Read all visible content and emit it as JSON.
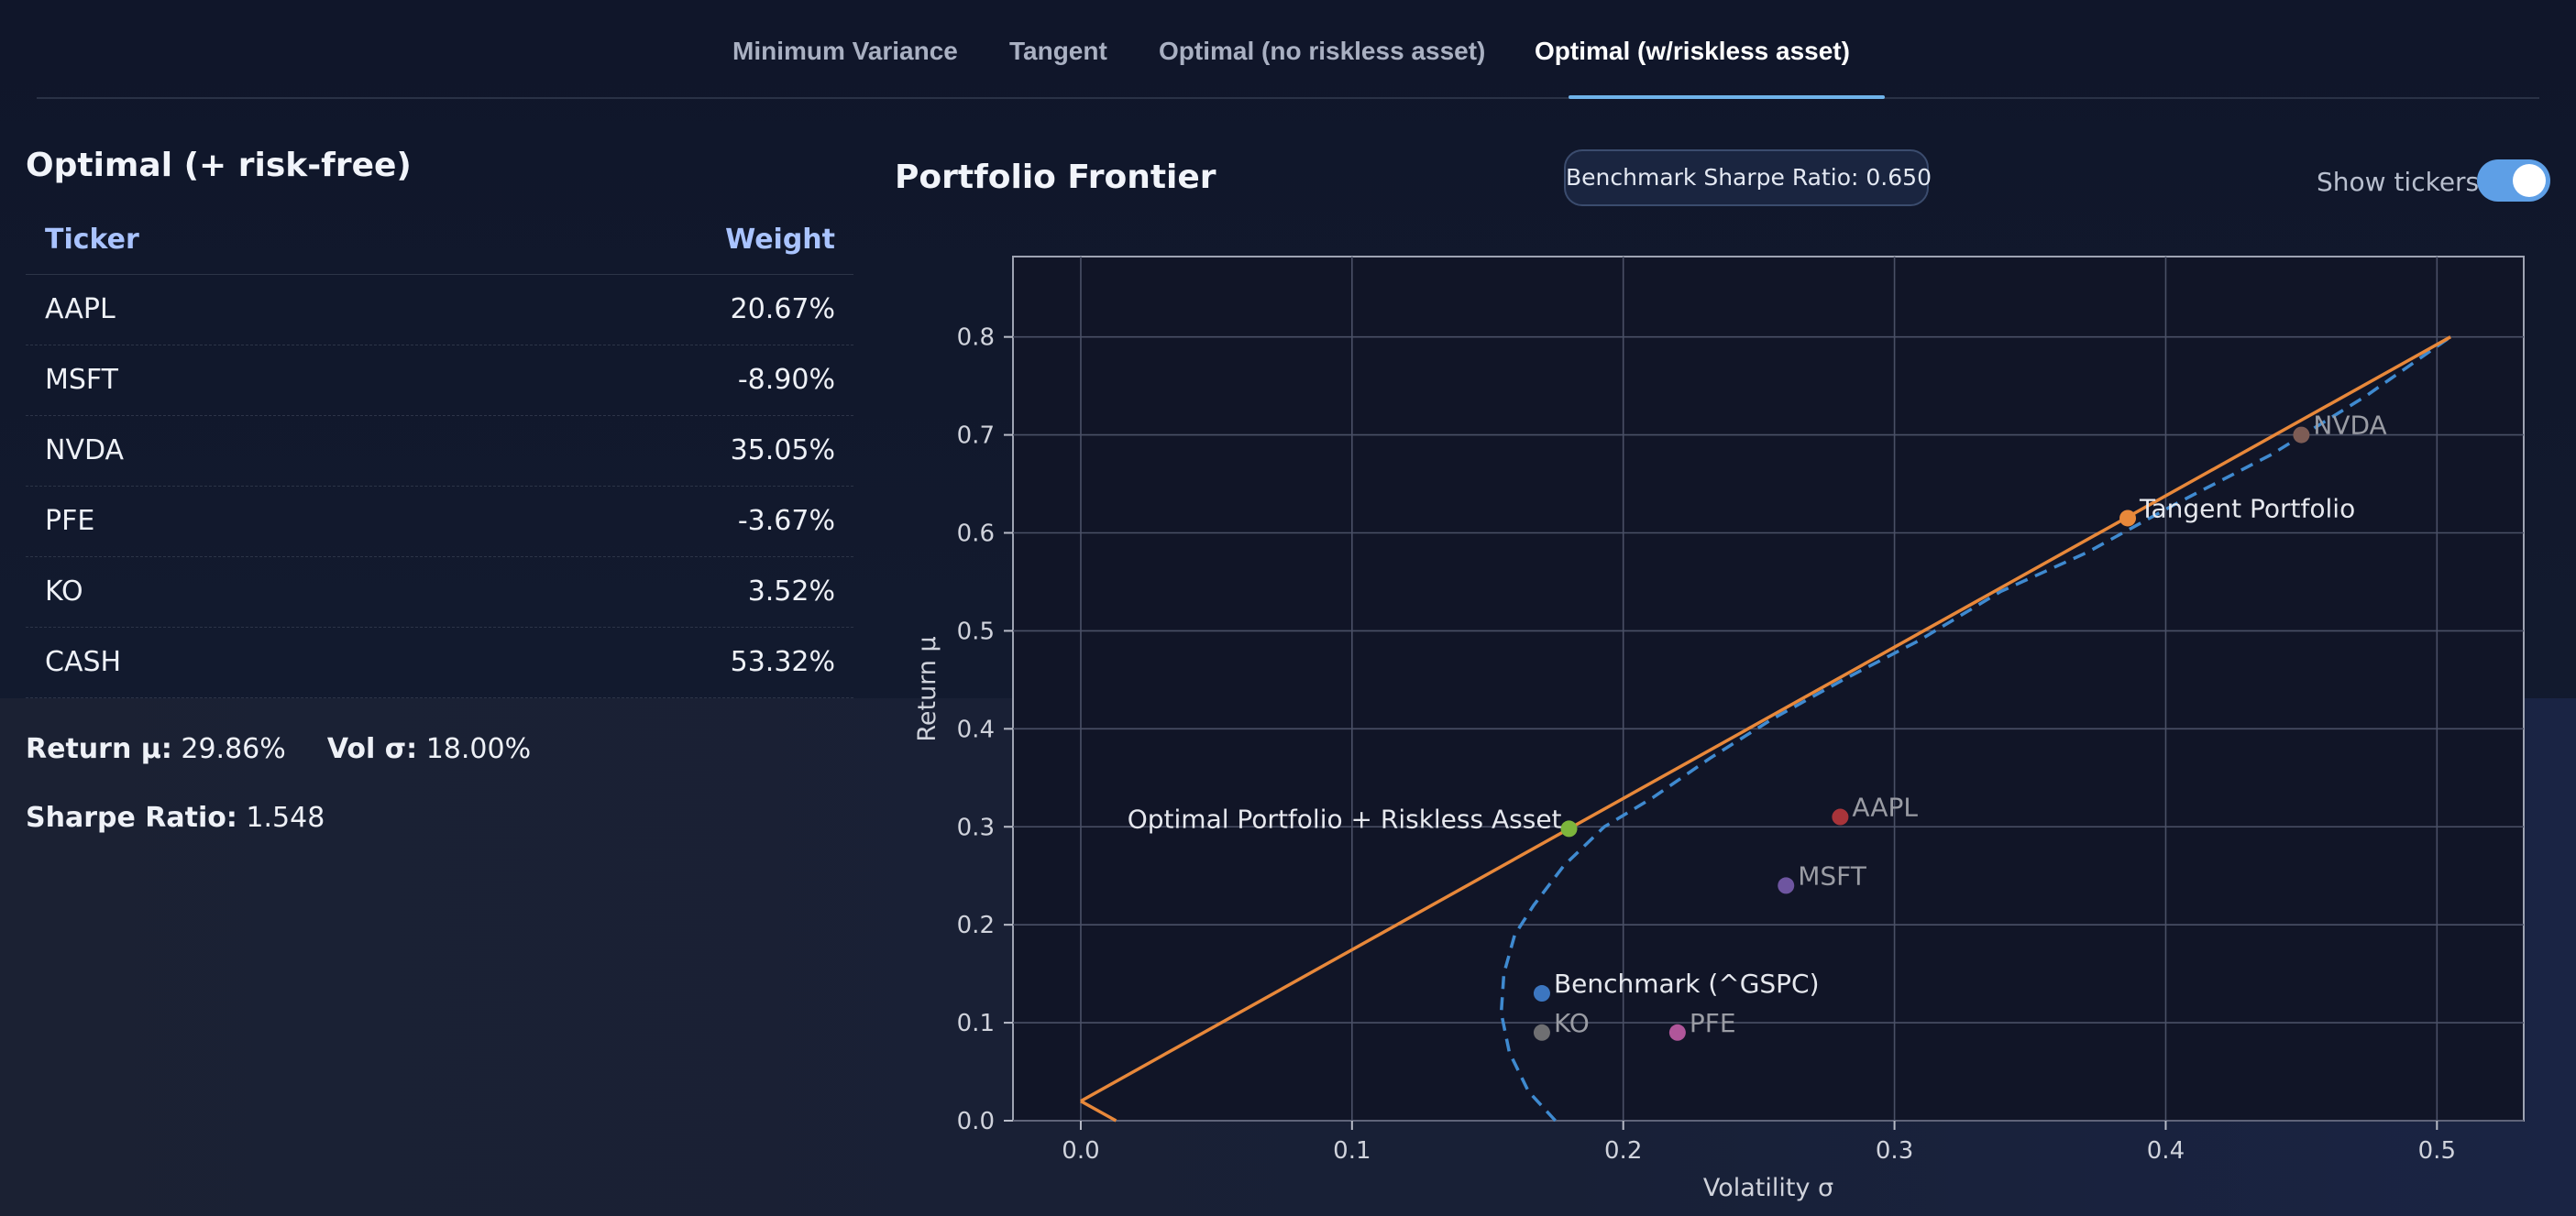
{
  "tabs": [
    {
      "label": "Minimum Variance"
    },
    {
      "label": "Tangent"
    },
    {
      "label": "Optimal (no riskless asset)"
    },
    {
      "label": "Optimal (w/riskless asset)"
    }
  ],
  "active_tab": 3,
  "left_panel": {
    "title": "Optimal (+ risk-free)",
    "headers": {
      "ticker": "Ticker",
      "weight": "Weight"
    },
    "rows": [
      {
        "ticker": "AAPL",
        "weight": "20.67%"
      },
      {
        "ticker": "MSFT",
        "weight": "-8.90%"
      },
      {
        "ticker": "NVDA",
        "weight": "35.05%"
      },
      {
        "ticker": "PFE",
        "weight": "-3.67%"
      },
      {
        "ticker": "KO",
        "weight": "3.52%"
      },
      {
        "ticker": "CASH",
        "weight": "53.32%"
      }
    ],
    "return_label": "Return μ:",
    "return_value": "29.86%",
    "vol_label": "Vol σ:",
    "vol_value": "18.00%",
    "sharpe_label": "Sharpe Ratio:",
    "sharpe_value": "1.548"
  },
  "chart_header": {
    "title": "Portfolio Frontier",
    "badge": "Benchmark Sharpe Ratio: 0.650",
    "toggle_label": "Show tickers",
    "toggle_on": true
  },
  "colors": {
    "cml": "#e8883a",
    "frontier": "#3f8ad0",
    "grid": "#4a5066",
    "axis": "#a8acb8"
  },
  "chart_data": {
    "type": "scatter",
    "xlabel": "Volatility σ",
    "ylabel": "Return μ",
    "xlim": [
      -0.025,
      0.532
    ],
    "ylim": [
      0.0,
      0.882
    ],
    "xticks": [
      "0.0",
      "0.1",
      "0.2",
      "0.3",
      "0.4",
      "0.5"
    ],
    "yticks": [
      "0.0",
      "0.1",
      "0.2",
      "0.3",
      "0.4",
      "0.5",
      "0.6",
      "0.7",
      "0.8"
    ],
    "grid": true,
    "cml": {
      "x": [
        0.0,
        0.505
      ],
      "y": [
        0.02,
        0.8
      ],
      "color": "#e8883a"
    },
    "cml_lower": {
      "x": [
        0.0,
        0.013
      ],
      "y": [
        0.02,
        0.0
      ]
    },
    "frontier": {
      "x": [
        0.175,
        0.165,
        0.158,
        0.155,
        0.156,
        0.16,
        0.167,
        0.178,
        0.193,
        0.211,
        0.232,
        0.255,
        0.281,
        0.309,
        0.339,
        0.371,
        0.404,
        0.439,
        0.474,
        0.505
      ],
      "y": [
        0.0,
        0.03,
        0.07,
        0.11,
        0.15,
        0.19,
        0.22,
        0.26,
        0.3,
        0.33,
        0.37,
        0.41,
        0.45,
        0.49,
        0.54,
        0.58,
        0.63,
        0.68,
        0.74,
        0.8
      ],
      "color": "#3f8ad0",
      "style": "dashed"
    },
    "points": [
      {
        "label": "NVDA",
        "x": 0.45,
        "y": 0.7,
        "color": "#7d5c55",
        "faded": true
      },
      {
        "label": "AAPL",
        "x": 0.28,
        "y": 0.31,
        "color": "#a8343a",
        "faded": true
      },
      {
        "label": "MSFT",
        "x": 0.26,
        "y": 0.24,
        "color": "#6e55a0",
        "faded": true
      },
      {
        "label": "PFE",
        "x": 0.22,
        "y": 0.09,
        "color": "#b0569a",
        "faded": true
      },
      {
        "label": "KO",
        "x": 0.17,
        "y": 0.09,
        "color": "#6f6f72",
        "faded": true
      },
      {
        "label": "Benchmark (^GSPC)",
        "x": 0.17,
        "y": 0.13,
        "color": "#3c76c0",
        "faded": false
      },
      {
        "label": "Tangent Portfolio",
        "x": 0.386,
        "y": 0.615,
        "color": "#e8883a",
        "faded": false
      },
      {
        "label": "Optimal Portfolio + Riskless Asset",
        "x": 0.18,
        "y": 0.298,
        "color": "#7db53c",
        "faded": false,
        "label_side": "left"
      }
    ]
  }
}
